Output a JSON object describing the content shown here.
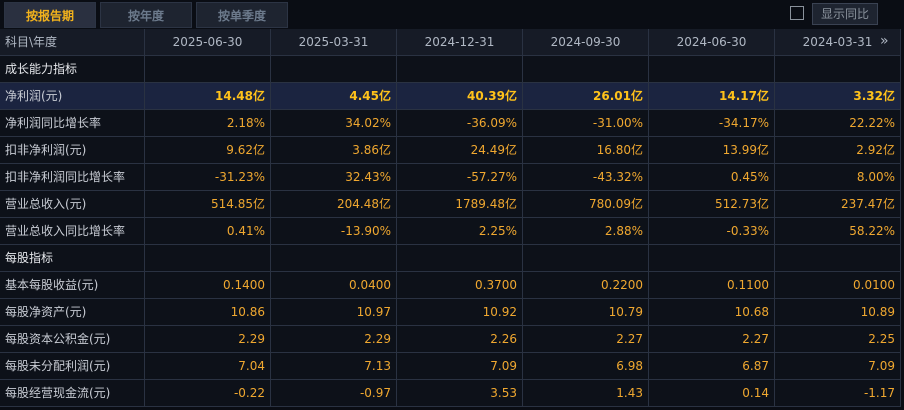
{
  "tabs": [
    "按报告期",
    "按年度",
    "按单季度"
  ],
  "active_tab": 0,
  "toggle_label": "显示同比",
  "table": {
    "corner": "科目\\年度",
    "columns": [
      "2025-06-30",
      "2025-03-31",
      "2024-12-31",
      "2024-09-30",
      "2024-06-30",
      "2024-03-31"
    ],
    "rows": [
      {
        "label": "成长能力指标",
        "section": true
      },
      {
        "label": "净利润(元)",
        "highlight": true,
        "cells": [
          "14.48亿",
          "4.45亿",
          "40.39亿",
          "26.01亿",
          "14.17亿",
          "3.32亿"
        ]
      },
      {
        "label": "净利润同比增长率",
        "cells": [
          "2.18%",
          "34.02%",
          "-36.09%",
          "-31.00%",
          "-34.17%",
          "22.22%"
        ]
      },
      {
        "label": "扣非净利润(元)",
        "cells": [
          "9.62亿",
          "3.86亿",
          "24.49亿",
          "16.80亿",
          "13.99亿",
          "2.92亿"
        ]
      },
      {
        "label": "扣非净利润同比增长率",
        "cells": [
          "-31.23%",
          "32.43%",
          "-57.27%",
          "-43.32%",
          "0.45%",
          "8.00%"
        ]
      },
      {
        "label": "营业总收入(元)",
        "cells": [
          "514.85亿",
          "204.48亿",
          "1789.48亿",
          "780.09亿",
          "512.73亿",
          "237.47亿"
        ]
      },
      {
        "label": "营业总收入同比增长率",
        "cells": [
          "0.41%",
          "-13.90%",
          "2.25%",
          "2.88%",
          "-0.33%",
          "58.22%"
        ]
      },
      {
        "label": "每股指标",
        "section": true
      },
      {
        "label": "基本每股收益(元)",
        "cells": [
          "0.1400",
          "0.0400",
          "0.3700",
          "0.2200",
          "0.1100",
          "0.0100"
        ]
      },
      {
        "label": "每股净资产(元)",
        "cells": [
          "10.86",
          "10.97",
          "10.92",
          "10.79",
          "10.68",
          "10.89"
        ]
      },
      {
        "label": "每股资本公积金(元)",
        "cells": [
          "2.29",
          "2.29",
          "2.26",
          "2.27",
          "2.27",
          "2.25"
        ]
      },
      {
        "label": "每股未分配利润(元)",
        "cells": [
          "7.04",
          "7.13",
          "7.09",
          "6.98",
          "6.87",
          "7.09"
        ]
      },
      {
        "label": "每股经营现金流(元)",
        "cells": [
          "-0.22",
          "-0.97",
          "3.53",
          "1.43",
          "0.14",
          "-1.17"
        ]
      }
    ]
  }
}
